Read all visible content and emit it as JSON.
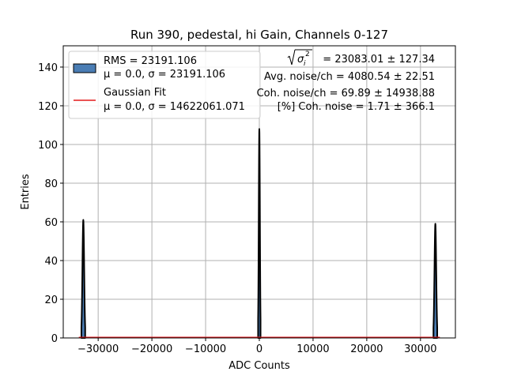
{
  "chart_data": {
    "type": "histogram",
    "title": "Run 390, pedestal, hi Gain, Channels 0-127",
    "xlabel": "ADC Counts",
    "ylabel": "Entries",
    "xlim": [
      -36500,
      36500
    ],
    "ylim": [
      0,
      151
    ],
    "xticks": [
      -30000,
      -20000,
      -10000,
      0,
      10000,
      20000,
      30000
    ],
    "xtick_labels": [
      "−30000",
      "−20000",
      "−10000",
      "0",
      "10000",
      "20000",
      "30000"
    ],
    "yticks": [
      0,
      20,
      40,
      60,
      80,
      100,
      120,
      140
    ],
    "ytick_labels": [
      "0",
      "20",
      "40",
      "60",
      "80",
      "100",
      "120",
      "140"
    ],
    "grid": true,
    "legend_position": "top-left",
    "legend": [
      {
        "line1": "RMS = 23191.106",
        "line2": "μ = 0.0, σ = 23191.106",
        "kind": "patch"
      },
      {
        "line1": "Gaussian Fit",
        "line2": "μ = 0.0, σ = 14622061.071",
        "kind": "line"
      }
    ],
    "stats": {
      "sigma_label": "= 23083.01 ± 127.34",
      "avg_noise": "Avg. noise/ch = 4080.54 ± 22.51",
      "coh_noise": "Coh. noise/ch = 69.89 ± 14938.88",
      "coh_pct": "[%] Coh. noise = 1.71 ± 366.1"
    },
    "colors": {
      "hist_fill": "#4a7db4",
      "hist_edge": "#000000",
      "fit": "#e41a1c",
      "grid": "#b0b0b0"
    },
    "peaks": [
      {
        "center": -32768,
        "height": 61,
        "width": 700
      },
      {
        "center": 0,
        "height": 108,
        "width": 450
      },
      {
        "center": 32767,
        "height": 59,
        "width": 700
      }
    ],
    "fit_value": 0.3
  }
}
